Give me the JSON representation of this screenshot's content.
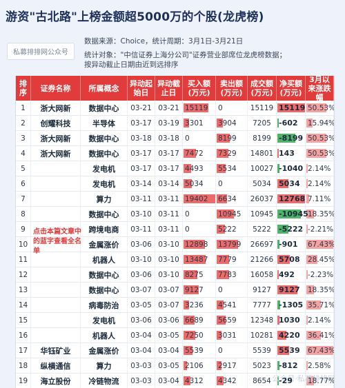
{
  "title": "游资\"古北路\"上榜金额超5000万的个股(龙虎榜)",
  "source_tag": "私募排排网公众号",
  "meta": {
    "line1": "数据来源：Choice，统计周期：3月1日-3月21日",
    "line2": "统计对象：\"中信证券上海分公司\"证券营业部席位龙虎榜数据；",
    "line3": "按异动截止日期由近到远排序"
  },
  "headers": [
    "排序",
    "证券名称",
    "所属概念",
    "异动起始日",
    "异动截止日",
    "买入额(万元)",
    "卖出额(万元)",
    "成交额(万元)",
    "净买额(万元)",
    "3月以来涨跌幅"
  ],
  "side_note": "点击本篇文章中的蓝字查看全名单",
  "watermark": "公众号·私募排排网",
  "rows": [
    {
      "rank": "1",
      "name": "浙大网新",
      "concept": "数据中心",
      "start": "03-21",
      "end": "03-21",
      "buy": "15119",
      "sell": "0",
      "turnover": "15119",
      "net": "15119",
      "chg": "50.53%",
      "buy_v": 15119,
      "sell_v": 0,
      "net_v": 15119,
      "chg_v": 50.53
    },
    {
      "rank": "2",
      "name": "创耀科技",
      "concept": "半导体",
      "start": "03-17",
      "end": "03-19",
      "buy": "3301",
      "sell": "3904",
      "turnover": "7205",
      "net": "-602",
      "chg": "15.94%",
      "buy_v": 3301,
      "sell_v": 3904,
      "net_v": -602,
      "chg_v": 15.94
    },
    {
      "rank": "3",
      "name": "浙大网新",
      "concept": "数据中心",
      "start": "03-18",
      "end": "03-18",
      "buy": "0",
      "sell": "8199",
      "turnover": "8199",
      "net": "-8199",
      "chg": "50.53%",
      "buy_v": 0,
      "sell_v": 8199,
      "net_v": -8199,
      "chg_v": 50.53
    },
    {
      "rank": "4",
      "name": "浙大网新",
      "concept": "数据中心",
      "start": "03-17",
      "end": "03-17",
      "buy": "7472",
      "sell": "7329",
      "turnover": "14801",
      "net": "143",
      "chg": "50.53%",
      "buy_v": 7472,
      "sell_v": 7329,
      "net_v": 143,
      "chg_v": 50.53
    },
    {
      "rank": "5",
      "name": "",
      "concept": "发电机",
      "start": "03-17",
      "end": "03-17",
      "buy": "4493",
      "sell": "5534",
      "turnover": "10027",
      "net": "-1040",
      "chg": "2.14%",
      "buy_v": 4493,
      "sell_v": 5534,
      "net_v": -1040,
      "chg_v": 2.14
    },
    {
      "rank": "6",
      "name": "",
      "concept": "发电机",
      "start": "03-14",
      "end": "03-14",
      "buy": "5034",
      "sell": "0",
      "turnover": "5034",
      "net": "5034",
      "chg": "2.14%",
      "buy_v": 5034,
      "sell_v": 0,
      "net_v": 5034,
      "chg_v": 2.14
    },
    {
      "rank": "7",
      "name": "",
      "concept": "算力",
      "start": "03-11",
      "end": "03-11",
      "buy": "19402",
      "sell": "6634",
      "turnover": "26037",
      "net": "12768",
      "chg": "7.11%",
      "buy_v": 19402,
      "sell_v": 6634,
      "net_v": 12768,
      "chg_v": 7.11
    },
    {
      "rank": "8",
      "name": "",
      "concept": "数据中心",
      "start": "03-10",
      "end": "03-11",
      "buy": "0",
      "sell": "10945",
      "turnover": "10945",
      "net": "-10945",
      "chg": "18.35%",
      "buy_v": 0,
      "sell_v": 10945,
      "net_v": -10945,
      "chg_v": 18.35
    },
    {
      "rank": "9",
      "name": "",
      "concept": "跨境电商",
      "start": "03-11",
      "end": "03-11",
      "buy": "0",
      "sell": "5222",
      "turnover": "5222",
      "net": "-5222",
      "chg": "-2.21%",
      "buy_v": 0,
      "sell_v": 5222,
      "net_v": -5222,
      "chg_v": -2.21
    },
    {
      "rank": "10",
      "name": "",
      "concept": "金属涨价",
      "start": "03-06",
      "end": "03-10",
      "buy": "12898",
      "sell": "13799",
      "turnover": "26697",
      "net": "-901",
      "chg": "67.43%",
      "buy_v": 12898,
      "sell_v": 13799,
      "net_v": -901,
      "chg_v": 67.43
    },
    {
      "rank": "11",
      "name": "",
      "concept": "机器人",
      "start": "03-10",
      "end": "03-10",
      "buy": "13487",
      "sell": "7779",
      "turnover": "21266",
      "net": "5708",
      "chg": "28.45%",
      "buy_v": 13487,
      "sell_v": 7779,
      "net_v": 5708,
      "chg_v": 28.45
    },
    {
      "rank": "12",
      "name": "",
      "concept": "数据中心",
      "start": "03-06",
      "end": "03-10",
      "buy": "8275",
      "sell": "7783",
      "turnover": "16058",
      "net": "492",
      "chg": "-2.23%",
      "buy_v": 8275,
      "sell_v": 7783,
      "net_v": 492,
      "chg_v": -2.23
    },
    {
      "rank": "13",
      "name": "",
      "concept": "数据中心",
      "start": "03-07",
      "end": "03-07",
      "buy": "9127",
      "sell": "0",
      "turnover": "9127",
      "net": "9127",
      "chg": "18.35%",
      "buy_v": 9127,
      "sell_v": 0,
      "net_v": 9127,
      "chg_v": 18.35
    },
    {
      "rank": "14",
      "name": "",
      "concept": "病毒防治",
      "start": "03-05",
      "end": "03-07",
      "buy": "3236",
      "sell": "4541",
      "turnover": "7777",
      "net": "-1305",
      "chg": "35.71%",
      "buy_v": 3236,
      "sell_v": 4541,
      "net_v": -1305,
      "chg_v": 35.71
    },
    {
      "rank": "15",
      "name": "",
      "concept": "发电机",
      "start": "03-06",
      "end": "03-06",
      "buy": "6689",
      "sell": "5659",
      "turnover": "12348",
      "net": "1030",
      "chg": "2.14%",
      "buy_v": 6689,
      "sell_v": 5659,
      "net_v": 1030,
      "chg_v": 2.14
    },
    {
      "rank": "16",
      "name": "",
      "concept": "机器人",
      "start": "03-04",
      "end": "03-05",
      "buy": "7250",
      "sell": "3031",
      "turnover": "10281",
      "net": "4220",
      "chg": "36.41%",
      "buy_v": 7250,
      "sell_v": 3031,
      "net_v": 4220,
      "chg_v": 36.41
    },
    {
      "rank": "17",
      "name": "华钰矿业",
      "concept": "金属涨价",
      "start": "03-04",
      "end": "03-04",
      "buy": "5539",
      "sell": "0",
      "turnover": "5539",
      "net": "5539",
      "chg": "67.43%",
      "buy_v": 5539,
      "sell_v": 0,
      "net_v": 5539,
      "chg_v": 67.43
    },
    {
      "rank": "18",
      "name": "纵横通信",
      "concept": "算力",
      "start": "03-03",
      "end": "03-05",
      "buy": "2106",
      "sell": "2917",
      "turnover": "5023",
      "net": "-812",
      "chg": "2.58%",
      "buy_v": 2106,
      "sell_v": 2917,
      "net_v": -812,
      "chg_v": 2.58
    },
    {
      "rank": "19",
      "name": "海立股份",
      "concept": "冷链物流",
      "start": "03-03",
      "end": "03-04",
      "buy": "4312",
      "sell": "4342",
      "turnover": "8654",
      "net": "-29",
      "chg": "18.77%",
      "buy_v": 4312,
      "sell_v": 4342,
      "net_v": -29,
      "chg_v": 18.77
    }
  ],
  "colors": {
    "header_bg": "#e23b3b",
    "bar_red": "#ee6b6b",
    "bar_green": "#4fb36a",
    "note": "#e23b3b"
  }
}
